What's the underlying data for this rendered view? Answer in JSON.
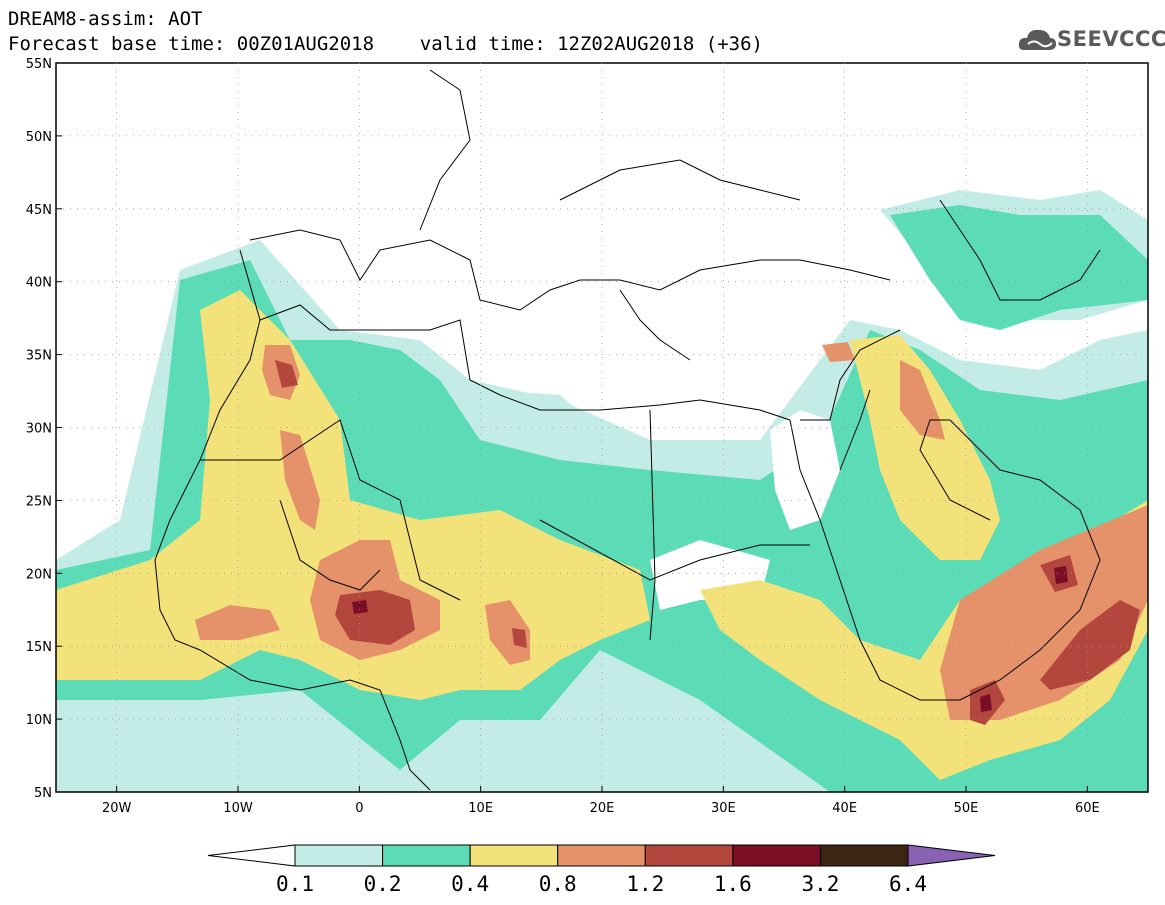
{
  "header": {
    "line1": "DREAM8-assim: AOT",
    "line2": "Forecast base time: 00Z01AUG2018    valid time: 12Z02AUG2018 (+36)"
  },
  "logo": {
    "text": "SEEVCCC",
    "icon": "cloud-icon"
  },
  "map": {
    "lat_labels": [
      "55N",
      "50N",
      "45N",
      "40N",
      "35N",
      "30N",
      "25N",
      "20N",
      "15N",
      "10N",
      "5N"
    ],
    "lon_labels": [
      "20W",
      "10W",
      "0",
      "10E",
      "20E",
      "30E",
      "40E",
      "50E",
      "60E"
    ],
    "extent": {
      "lon": [
        -25,
        65
      ],
      "lat": [
        5,
        55
      ]
    }
  },
  "colorbar": {
    "labels": [
      "0.1",
      "0.2",
      "0.4",
      "0.8",
      "1.2",
      "1.6",
      "3.2",
      "6.4"
    ],
    "colors": [
      "#ffffff",
      "#c4ece6",
      "#5bdcb6",
      "#f3e27a",
      "#e5926a",
      "#b3473e",
      "#7a0e25",
      "#3d2413",
      "#8a62b4"
    ]
  }
}
